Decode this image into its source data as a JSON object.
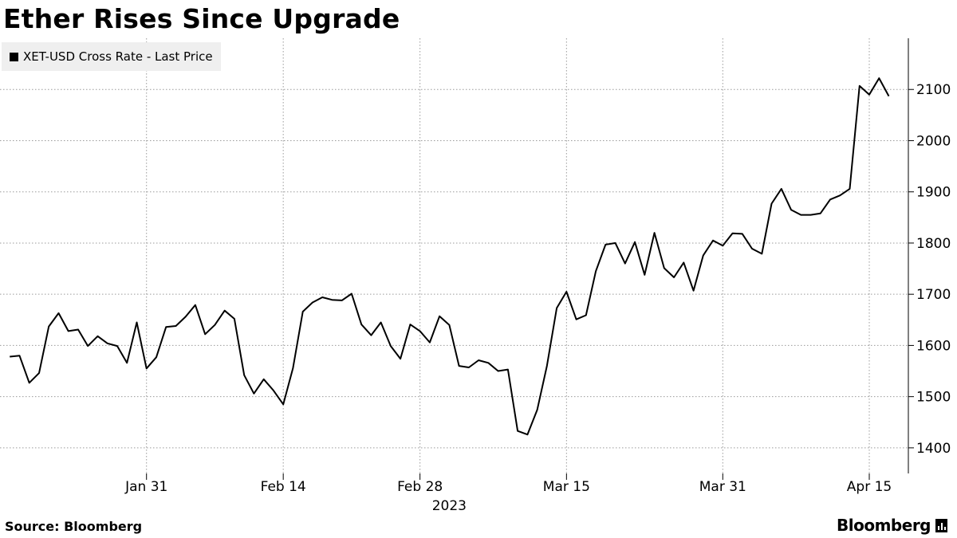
{
  "title": "Ether Rises Since Upgrade",
  "footer": {
    "source": "Source: Bloomberg",
    "brand": "Bloomberg"
  },
  "colors": {
    "line": "#000000",
    "grid": "#9a9a9a",
    "legend_bg": "#efefef"
  },
  "chart_data": {
    "type": "line",
    "title": "Ether Rises Since Upgrade",
    "legend": {
      "placement": "top-left"
    },
    "series": [
      {
        "name": "XET-USD Cross Rate - Last Price",
        "color": "#000000",
        "points": [
          [
            "2023-01-17",
            1578
          ],
          [
            "2023-01-18",
            1580
          ],
          [
            "2023-01-19",
            1527
          ],
          [
            "2023-01-20",
            1546
          ],
          [
            "2023-01-21",
            1637
          ],
          [
            "2023-01-22",
            1663
          ],
          [
            "2023-01-23",
            1628
          ],
          [
            "2023-01-24",
            1631
          ],
          [
            "2023-01-25",
            1599
          ],
          [
            "2023-01-26",
            1618
          ],
          [
            "2023-01-27",
            1604
          ],
          [
            "2023-01-28",
            1599
          ],
          [
            "2023-01-29",
            1566
          ],
          [
            "2023-01-30",
            1645
          ],
          [
            "2023-01-31",
            1555
          ],
          [
            "2023-02-01",
            1577
          ],
          [
            "2023-02-02",
            1636
          ],
          [
            "2023-02-03",
            1638
          ],
          [
            "2023-02-04",
            1656
          ],
          [
            "2023-02-05",
            1679
          ],
          [
            "2023-02-06",
            1622
          ],
          [
            "2023-02-07",
            1640
          ],
          [
            "2023-02-08",
            1668
          ],
          [
            "2023-02-09",
            1652
          ],
          [
            "2023-02-10",
            1542
          ],
          [
            "2023-02-11",
            1506
          ],
          [
            "2023-02-12",
            1534
          ],
          [
            "2023-02-13",
            1512
          ],
          [
            "2023-02-14",
            1485
          ],
          [
            "2023-02-15",
            1556
          ],
          [
            "2023-02-16",
            1666
          ],
          [
            "2023-02-17",
            1684
          ],
          [
            "2023-02-18",
            1694
          ],
          [
            "2023-02-19",
            1689
          ],
          [
            "2023-02-20",
            1688
          ],
          [
            "2023-02-21",
            1701
          ],
          [
            "2023-02-22",
            1641
          ],
          [
            "2023-02-23",
            1620
          ],
          [
            "2023-02-24",
            1645
          ],
          [
            "2023-02-25",
            1599
          ],
          [
            "2023-02-26",
            1574
          ],
          [
            "2023-02-27",
            1641
          ],
          [
            "2023-02-28",
            1628
          ],
          [
            "2023-03-01",
            1606
          ],
          [
            "2023-03-02",
            1657
          ],
          [
            "2023-03-03",
            1640
          ],
          [
            "2023-03-04",
            1560
          ],
          [
            "2023-03-05",
            1557
          ],
          [
            "2023-03-06",
            1571
          ],
          [
            "2023-03-07",
            1566
          ],
          [
            "2023-03-08",
            1550
          ],
          [
            "2023-03-09",
            1553
          ],
          [
            "2023-03-10",
            1433
          ],
          [
            "2023-03-11",
            1426
          ],
          [
            "2023-03-12",
            1474
          ],
          [
            "2023-03-13",
            1560
          ],
          [
            "2023-03-14",
            1673
          ],
          [
            "2023-03-15",
            1705
          ],
          [
            "2023-03-16",
            1651
          ],
          [
            "2023-03-17",
            1659
          ],
          [
            "2023-03-18",
            1745
          ],
          [
            "2023-03-19",
            1797
          ],
          [
            "2023-03-20",
            1800
          ],
          [
            "2023-03-21",
            1760
          ],
          [
            "2023-03-22",
            1802
          ],
          [
            "2023-03-23",
            1738
          ],
          [
            "2023-03-24",
            1820
          ],
          [
            "2023-03-25",
            1751
          ],
          [
            "2023-03-26",
            1733
          ],
          [
            "2023-03-27",
            1762
          ],
          [
            "2023-03-28",
            1707
          ],
          [
            "2023-03-29",
            1776
          ],
          [
            "2023-03-30",
            1805
          ],
          [
            "2023-03-31",
            1795
          ],
          [
            "2023-04-01",
            1819
          ],
          [
            "2023-04-02",
            1818
          ],
          [
            "2023-04-03",
            1789
          ],
          [
            "2023-04-04",
            1779
          ],
          [
            "2023-04-05",
            1877
          ],
          [
            "2023-04-06",
            1906
          ],
          [
            "2023-04-07",
            1865
          ],
          [
            "2023-04-08",
            1855
          ],
          [
            "2023-04-09",
            1855
          ],
          [
            "2023-04-10",
            1858
          ],
          [
            "2023-04-11",
            1885
          ],
          [
            "2023-04-12",
            1893
          ],
          [
            "2023-04-13",
            1906
          ],
          [
            "2023-04-14",
            2107
          ],
          [
            "2023-04-15",
            2090
          ],
          [
            "2023-04-16",
            2122
          ],
          [
            "2023-04-17",
            2087
          ]
        ]
      }
    ],
    "xlim": [
      "2023-01-16",
      "2023-04-19"
    ],
    "ylim": [
      1350,
      2200
    ],
    "y_ticks": [
      1400,
      1500,
      1600,
      1700,
      1800,
      1900,
      2000,
      2100
    ],
    "x_ticks": [
      {
        "date": "2023-01-31",
        "label": "Jan 31"
      },
      {
        "date": "2023-02-14",
        "label": "Feb 14"
      },
      {
        "date": "2023-02-28",
        "label": "Feb 28"
      },
      {
        "date": "2023-03-15",
        "label": "Mar 15"
      },
      {
        "date": "2023-03-31",
        "label": "Mar 31"
      },
      {
        "date": "2023-04-15",
        "label": "Apr 15"
      }
    ],
    "x_year_label": "2023",
    "y_axis_side": "right",
    "grid": {
      "vertical": true,
      "horizontal": true,
      "style": "dotted"
    }
  }
}
